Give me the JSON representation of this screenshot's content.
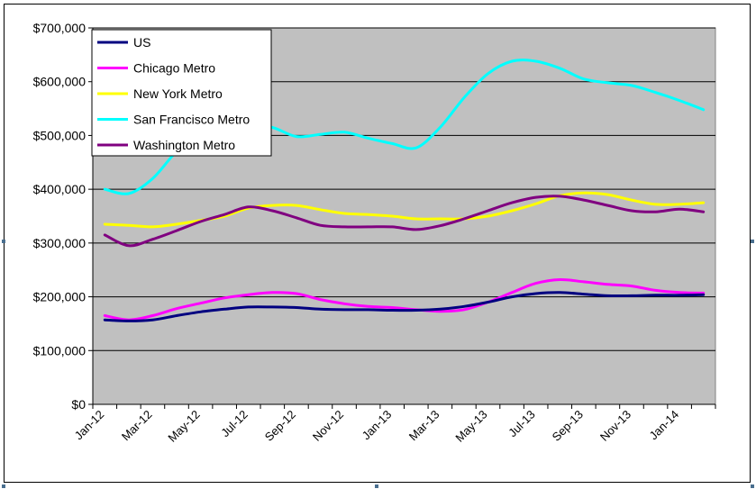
{
  "chart_data": {
    "type": "line",
    "title": "",
    "xlabel": "",
    "ylabel": "",
    "ylim": [
      0,
      700000
    ],
    "y_ticks": [
      0,
      100000,
      200000,
      300000,
      400000,
      500000,
      600000,
      700000
    ],
    "y_tick_labels": [
      "$0",
      "$100,000",
      "$200,000",
      "$300,000",
      "$400,000",
      "$500,000",
      "$600,000",
      "$700,000"
    ],
    "x": [
      "Jan-12",
      "Feb-12",
      "Mar-12",
      "Apr-12",
      "May-12",
      "Jun-12",
      "Jul-12",
      "Aug-12",
      "Sep-12",
      "Oct-12",
      "Nov-12",
      "Dec-12",
      "Jan-13",
      "Feb-13",
      "Mar-13",
      "Apr-13",
      "May-13",
      "Jun-13",
      "Jul-13",
      "Aug-13",
      "Sep-13",
      "Oct-13",
      "Nov-13",
      "Dec-13",
      "Jan-14",
      "Feb-14"
    ],
    "x_tick_labels": [
      "Jan-12",
      "Mar-12",
      "May-12",
      "Jul-12",
      "Sep-12",
      "Nov-12",
      "Jan-13",
      "Mar-13",
      "May-13",
      "Jul-13",
      "Sep-13",
      "Nov-13",
      "Jan-14"
    ],
    "grid": "horizontal",
    "plot_background": "#c0c0c0",
    "legend_position": "top-left",
    "series": [
      {
        "name": "US",
        "color": "#000080",
        "values": [
          157000,
          155000,
          157000,
          165000,
          172000,
          177000,
          181000,
          181000,
          180000,
          177000,
          176000,
          176000,
          175000,
          175000,
          177000,
          182000,
          190000,
          200000,
          206000,
          208000,
          205000,
          202000,
          202000,
          203000,
          203000,
          204000
        ]
      },
      {
        "name": "Chicago Metro",
        "color": "#ff00ff",
        "values": [
          165000,
          157000,
          165000,
          178000,
          188000,
          198000,
          204000,
          208000,
          206000,
          195000,
          187000,
          182000,
          180000,
          176000,
          173000,
          176000,
          190000,
          208000,
          225000,
          232000,
          228000,
          223000,
          220000,
          212000,
          208000,
          207000
        ]
      },
      {
        "name": "New York Metro",
        "color": "#ffff00",
        "values": [
          335000,
          333000,
          330000,
          335000,
          342000,
          350000,
          365000,
          370000,
          370000,
          362000,
          355000,
          353000,
          350000,
          345000,
          345000,
          345000,
          350000,
          360000,
          373000,
          388000,
          393000,
          390000,
          380000,
          372000,
          372000,
          375000
        ]
      },
      {
        "name": "San Francisco Metro",
        "color": "#00ffff",
        "values": [
          400000,
          392000,
          420000,
          470000,
          500000,
          515000,
          520000,
          515000,
          498000,
          502000,
          506000,
          495000,
          485000,
          477000,
          515000,
          570000,
          615000,
          638000,
          638000,
          625000,
          605000,
          598000,
          593000,
          580000,
          565000,
          548000
        ]
      },
      {
        "name": "Washington Metro",
        "color": "#800080",
        "values": [
          315000,
          295000,
          307000,
          323000,
          340000,
          353000,
          367000,
          360000,
          347000,
          333000,
          330000,
          330000,
          330000,
          325000,
          332000,
          345000,
          360000,
          375000,
          385000,
          387000,
          380000,
          370000,
          360000,
          358000,
          363000,
          358000
        ]
      }
    ]
  }
}
